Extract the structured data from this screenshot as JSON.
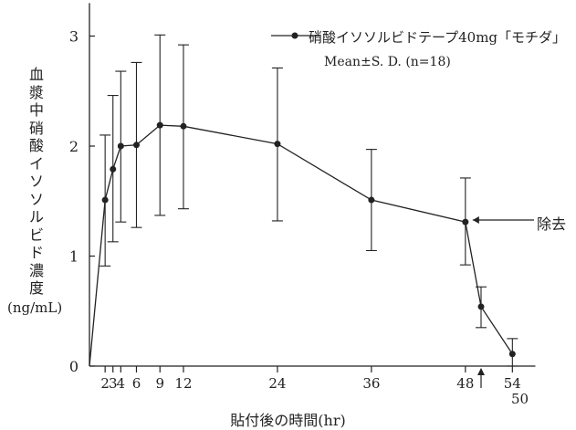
{
  "chart_data": {
    "type": "line",
    "title": "",
    "xlabel": "貼付後の時間(hr)",
    "ylabel": "血漿中硝酸イソソルビド濃度",
    "yunit": "(ng/mL)",
    "xlim": [
      0,
      56
    ],
    "ylim": [
      0,
      3.2
    ],
    "x_ticks": [
      2,
      3,
      4,
      6,
      9,
      12,
      24,
      36,
      48,
      54
    ],
    "x_tick_labels": [
      "2",
      "3",
      "4",
      "6",
      "9",
      "12",
      "24",
      "36",
      "48",
      "54"
    ],
    "x_extra_label": "50",
    "y_ticks": [
      0,
      1,
      2,
      3
    ],
    "y_tick_labels": [
      "0",
      "1",
      "2",
      "3"
    ],
    "series": [
      {
        "name": "硝酸イソソルビドテープ40mg「モチダ」",
        "x": [
          0,
          2,
          3,
          4,
          6,
          9,
          12,
          24,
          36,
          48,
          50,
          54
        ],
        "values": [
          0,
          1.51,
          1.79,
          2.0,
          2.01,
          2.19,
          2.18,
          2.02,
          1.51,
          1.31,
          0.54,
          0.11
        ],
        "error_low": [
          null,
          0.91,
          1.13,
          1.31,
          1.26,
          1.37,
          1.43,
          1.32,
          1.05,
          0.92,
          0.35,
          0.0
        ],
        "error_high": [
          null,
          2.1,
          2.46,
          2.68,
          2.76,
          3.01,
          2.92,
          2.71,
          1.97,
          1.71,
          0.72,
          0.25
        ]
      }
    ],
    "legend_stats": "Mean±S. D. (n=18)",
    "annotation": {
      "text": "除去",
      "x": 48
    },
    "legend_position": "top-right",
    "grid": false
  }
}
